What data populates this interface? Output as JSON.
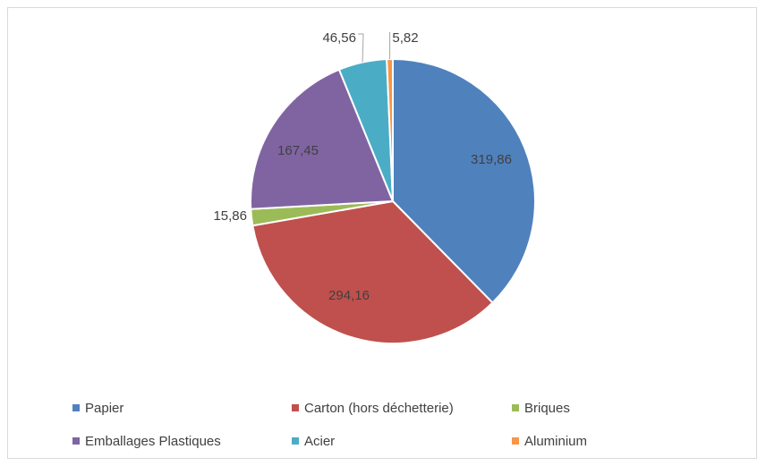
{
  "chart_data": {
    "type": "pie",
    "title": "",
    "decimal_separator": ",",
    "categories": [
      "Papier",
      "Carton (hors déchetterie)",
      "Briques",
      "Emballages Plastiques",
      "Acier",
      "Aluminium"
    ],
    "values": [
      319.86,
      294.16,
      15.86,
      167.45,
      46.56,
      5.82
    ],
    "value_labels": [
      "319,86",
      "294,16",
      "15,86",
      "167,45",
      "46,56",
      "5,82"
    ],
    "colors": [
      "#4f81bd",
      "#c0504d",
      "#9bbb59",
      "#8064a2",
      "#4bacc6",
      "#f79646"
    ],
    "legend_position": "bottom",
    "start_angle_deg": 0,
    "direction": "clockwise"
  }
}
